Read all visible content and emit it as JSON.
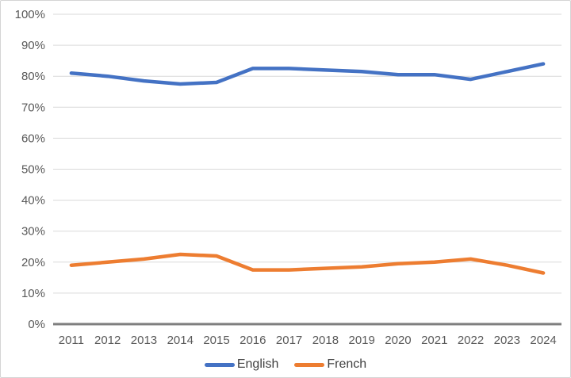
{
  "chart_data": {
    "type": "line",
    "x": [
      "2011",
      "2012",
      "2013",
      "2014",
      "2015",
      "2016",
      "2017",
      "2018",
      "2019",
      "2020",
      "2021",
      "2022",
      "2023",
      "2024"
    ],
    "series": [
      {
        "name": "English",
        "color": "#4472C4",
        "values": [
          81,
          80,
          78.5,
          77.5,
          78,
          82.5,
          82.5,
          82,
          81.5,
          80.5,
          80.5,
          79,
          81.5,
          84
        ]
      },
      {
        "name": "French",
        "color": "#ED7D31",
        "values": [
          19,
          20,
          21,
          22.5,
          22,
          17.5,
          17.5,
          18,
          18.5,
          19.5,
          20,
          21,
          19,
          16.5
        ]
      }
    ],
    "title": "",
    "xlabel": "",
    "ylabel": "",
    "ylim": [
      0,
      100
    ],
    "ytick_step": 10,
    "ytick_suffix": "%",
    "grid": true,
    "legend_position": "bottom-center"
  },
  "style_colors": {
    "gridline": "#D9D9D9",
    "axis_line": "#7F7F7F",
    "tick_text": "#595959",
    "legend_text": "#404040",
    "background": "#FFFFFF",
    "canvas_border": "#D4D4D4"
  }
}
